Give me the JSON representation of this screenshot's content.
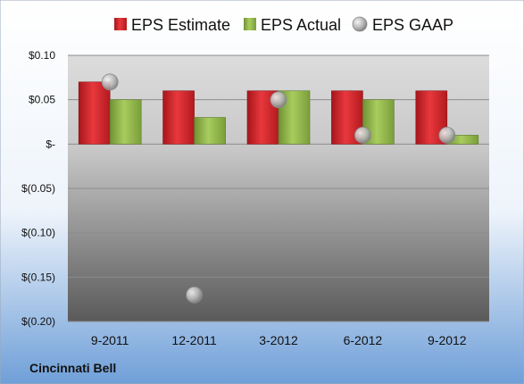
{
  "company": "Cincinnati Bell",
  "colors": {
    "estimate": "#d01f25",
    "actual": "#8fb543",
    "gaap": "#b8b8b8"
  },
  "chart_data": {
    "type": "bar",
    "categories": [
      "9-2011",
      "12-2011",
      "3-2012",
      "6-2012",
      "9-2012"
    ],
    "series": [
      {
        "name": "EPS Estimate",
        "kind": "bar",
        "values": [
          0.07,
          0.06,
          0.06,
          0.06,
          0.06
        ]
      },
      {
        "name": "EPS Actual",
        "kind": "bar",
        "values": [
          0.05,
          0.03,
          0.06,
          0.05,
          0.01
        ]
      },
      {
        "name": "EPS GAAP",
        "kind": "scatter",
        "values": [
          0.07,
          -0.17,
          0.05,
          0.01,
          0.01
        ]
      }
    ],
    "yticks": [
      0.1,
      0.05,
      0,
      -0.05,
      -0.1,
      -0.15,
      -0.2
    ],
    "ytick_labels": [
      "$0.10",
      "$0.05",
      "$-",
      "$(0.05)",
      "$(0.10)",
      "$(0.15)",
      "$(0.20)"
    ],
    "ylim": [
      -0.2,
      0.1
    ],
    "grid": true,
    "legend": "top"
  }
}
